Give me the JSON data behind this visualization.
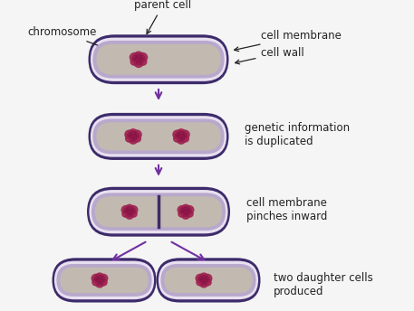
{
  "background_color": "#f5f5f5",
  "cell_wall_color": "#3d2b6b",
  "cell_membrane_color": "#b8a8cc",
  "cell_interior_color": "#c2bab0",
  "chromosome_color": "#a02050",
  "chromosome_outline": "#7a1040",
  "divider_color": "#3d2b6b",
  "arrow_color": "#7030a0",
  "label_color": "#222222",
  "labels": {
    "chromosome": "chromosome",
    "parent_cell": "parent cell",
    "cell_membrane": "cell membrane",
    "cell_wall": "cell wall",
    "genetic_info": "genetic information\nis duplicated",
    "pinches": "cell membrane\npinches inward",
    "daughter": "two daughter cells\nproduced"
  },
  "font_size": 8.5
}
